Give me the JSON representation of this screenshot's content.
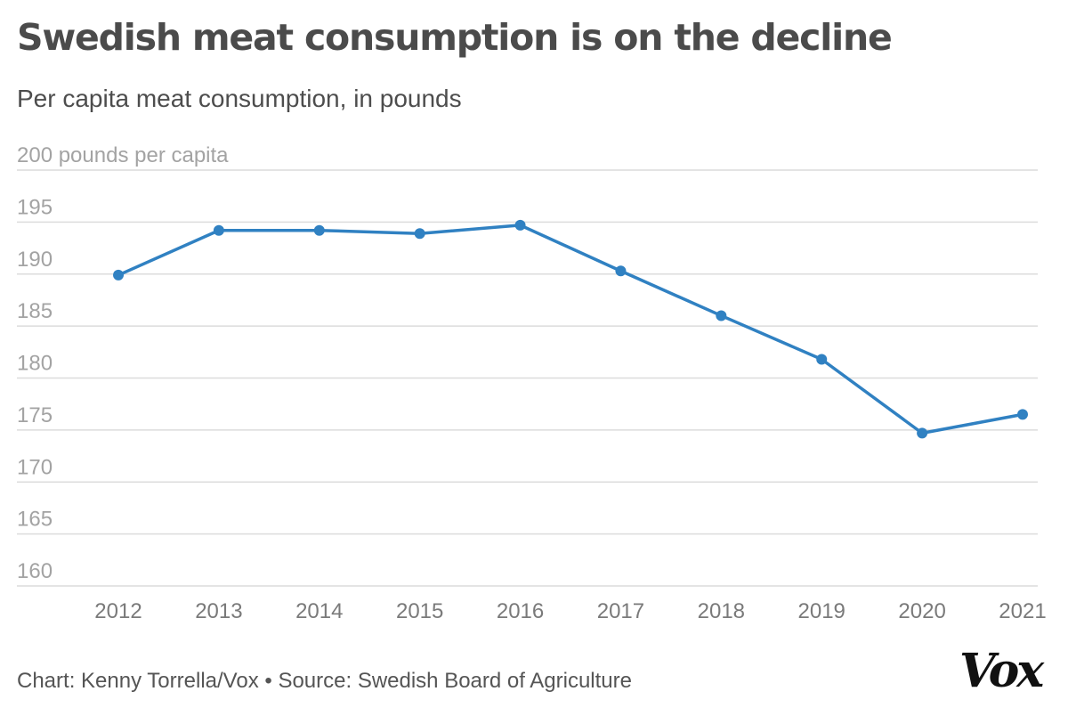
{
  "header": {
    "title": "Swedish meat consumption is on the decline",
    "subtitle": "Per capita meat consumption, in pounds"
  },
  "footer": {
    "credit": "Chart: Kenny Torrella/Vox • Source: Swedish Board of Agriculture",
    "logo": "Vox"
  },
  "colors": {
    "line": "#3081c2",
    "grid": "#dcdcdc"
  },
  "chart_data": {
    "type": "line",
    "title": "Swedish meat consumption is on the decline",
    "subtitle": "Per capita meat consumption, in pounds",
    "xlabel": "",
    "ylabel": "",
    "x": [
      "2012",
      "2013",
      "2014",
      "2015",
      "2016",
      "2017",
      "2018",
      "2019",
      "2020",
      "2021"
    ],
    "series": [
      {
        "name": "Per capita meat consumption (pounds)",
        "values": [
          189.9,
          194.2,
          194.2,
          193.9,
          194.7,
          190.3,
          186.0,
          181.8,
          174.7,
          176.5
        ]
      }
    ],
    "ylim": [
      160,
      200
    ],
    "yticks": [
      160,
      165,
      170,
      175,
      180,
      185,
      190,
      195,
      200
    ],
    "ytick_labels": [
      "160",
      "165",
      "170",
      "175",
      "180",
      "185",
      "190",
      "195",
      "200 pounds per capita"
    ],
    "grid": true,
    "legend": "none",
    "markers": true
  }
}
